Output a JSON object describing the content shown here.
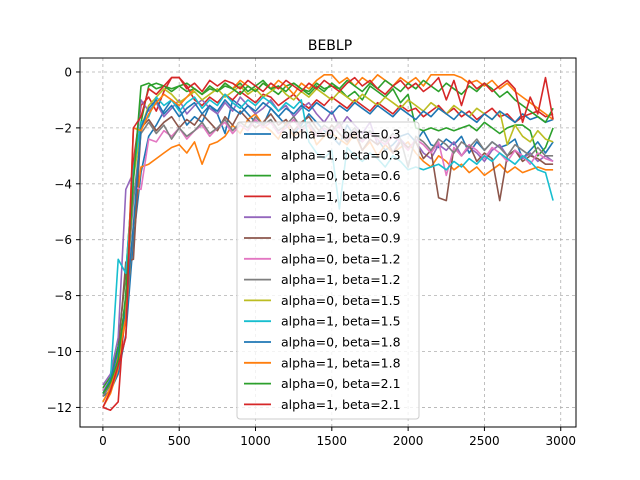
{
  "chart_data": {
    "type": "line",
    "title": "BEBLP",
    "xlabel": "",
    "ylabel": "",
    "xlim": [
      -150,
      3100
    ],
    "ylim": [
      -12.7,
      0.5
    ],
    "xticks": [
      0,
      500,
      1000,
      1500,
      2000,
      2500,
      3000
    ],
    "yticks": [
      0,
      -2,
      -4,
      -6,
      -8,
      -10,
      -12
    ],
    "grid": true,
    "legend_position": "center",
    "x_step": 50,
    "series": [
      {
        "name": "alpha=0, beta=0.3",
        "color": "#1f77b4",
        "values": [
          -11.6,
          -11.4,
          -10.8,
          -9.4,
          -6.0,
          -3.6,
          -2.3,
          -1.9,
          -1.4,
          -1.0,
          -1.3,
          -1.9,
          -1.6,
          -1.8,
          -1.2,
          -1.5,
          -2.2,
          -1.0,
          -1.2,
          -1.5,
          -1.8,
          -1.9,
          -1.3,
          -1.6,
          -1.9,
          -2.2,
          -1.9,
          -1.5,
          -1.8,
          -2.1,
          -2.3,
          -2.6,
          -1.9,
          -2.3,
          -2.5,
          -2.1,
          -2.4,
          -2.8,
          -2.6,
          -2.3,
          -2.2,
          -2.5,
          -2.1,
          -2.6,
          -2.7,
          -2.4,
          -2.6,
          -2.3,
          -2.9,
          -2.5,
          -2.8,
          -2.5,
          -2.7,
          -2.6,
          -2.4,
          -3.1,
          -2.8,
          -2.5,
          -2.9,
          -2.5
        ]
      },
      {
        "name": "alpha=1, beta=0.3",
        "color": "#ff7f0e",
        "values": [
          -12.0,
          -11.5,
          -10.6,
          -8.8,
          -5.5,
          -3.4,
          -3.3,
          -3.1,
          -2.9,
          -2.7,
          -2.6,
          -2.9,
          -2.5,
          -3.3,
          -2.6,
          -2.5,
          -2.3,
          -1.9,
          -2.2,
          -1.7,
          -1.5,
          -1.9,
          -2.1,
          -2.4,
          -1.8,
          -2.3,
          -2.1,
          -1.9,
          -2.6,
          -2.3,
          -2.2,
          -2.4,
          -2.6,
          -2.2,
          -2.8,
          -2.5,
          -3.0,
          -2.6,
          -2.9,
          -2.7,
          -2.5,
          -2.9,
          -3.2,
          -3.4,
          -3.0,
          -3.2,
          -3.5,
          -3.3,
          -3.6,
          -3.4,
          -3.7,
          -3.5,
          -3.3,
          -3.6,
          -3.4,
          -3.6,
          -3.5,
          -3.4,
          -3.5,
          -3.5
        ]
      },
      {
        "name": "alpha=0, beta=0.6",
        "color": "#2ca02c",
        "values": [
          -11.3,
          -10.9,
          -9.8,
          -7.2,
          -3.5,
          -1.8,
          -0.5,
          -0.4,
          -0.5,
          -0.6,
          -0.5,
          -0.7,
          -0.6,
          -0.8,
          -0.6,
          -0.7,
          -0.5,
          -0.6,
          -0.4,
          -0.7,
          -0.5,
          -0.3,
          -0.6,
          -0.8,
          -0.5,
          -0.4,
          -0.6,
          -0.7,
          -0.4,
          -0.6,
          -0.5,
          -0.6,
          -0.9,
          -0.7,
          -1.0,
          -0.5,
          -0.7,
          -0.9,
          -0.6,
          -1.1,
          -0.8,
          -2.0,
          -2.1,
          -2.0,
          -2.1,
          -2.0,
          -2.1,
          -2.0,
          -1.9,
          -2.1,
          -1.8,
          -2.0,
          -2.2,
          -2.0,
          -1.9,
          -1.9,
          -2.1,
          -3.0,
          -2.7,
          -2.0
        ]
      },
      {
        "name": "alpha=1, beta=0.6",
        "color": "#d62728",
        "values": [
          -12.0,
          -12.1,
          -11.8,
          -8.0,
          -3.2,
          -1.2,
          -0.9,
          -1.4,
          -0.7,
          -0.2,
          -0.2,
          -0.5,
          -1.0,
          -1.2,
          -0.9,
          -1.1,
          -0.8,
          -1.0,
          -0.7,
          -0.9,
          -1.1,
          -0.8,
          -0.9,
          -1.2,
          -1.0,
          -0.8,
          -1.1,
          -1.3,
          -1.0,
          -1.2,
          -0.9,
          -1.1,
          -1.3,
          -1.0,
          -1.2,
          -1.4,
          -1.1,
          -1.3,
          -1.5,
          -1.2,
          -1.4,
          -1.3,
          -1.6,
          -1.4,
          -1.2,
          -1.5,
          -1.3,
          -1.6,
          -1.4,
          -1.7,
          -1.5,
          -1.3,
          -1.6,
          -1.5,
          -1.8,
          -1.6,
          -1.5,
          -1.4,
          -1.6,
          -1.5
        ]
      },
      {
        "name": "alpha=0, beta=0.9",
        "color": "#9467bd",
        "values": [
          -11.2,
          -10.8,
          -9.5,
          -4.2,
          -3.6,
          -1.0,
          -1.4,
          -1.1,
          -1.6,
          -1.3,
          -1.0,
          -1.5,
          -1.2,
          -1.0,
          -1.3,
          -1.5,
          -1.1,
          -1.4,
          -0.9,
          -1.2,
          -1.5,
          -1.3,
          -1.0,
          -1.4,
          -1.2,
          -1.6,
          -1.3,
          -1.1,
          -1.5,
          -1.8,
          -1.4,
          -2.0,
          -1.6,
          -1.9,
          -2.2,
          -1.8,
          -2.6,
          -2.3,
          -2.9,
          -2.4,
          -2.7,
          -2.5,
          -2.9,
          -3.1,
          -2.6,
          -2.8,
          -2.5,
          -3.0,
          -2.7,
          -2.9,
          -3.2,
          -2.8,
          -2.6,
          -3.0,
          -2.8,
          -3.1,
          -2.9,
          -3.2,
          -3.0,
          -3.2
        ]
      },
      {
        "name": "alpha=1, beta=0.9",
        "color": "#8c564b",
        "values": [
          -11.5,
          -11.2,
          -10.1,
          -6.8,
          -6.7,
          -2.0,
          -1.7,
          -2.1,
          -1.8,
          -1.6,
          -2.0,
          -1.7,
          -1.9,
          -1.5,
          -1.8,
          -2.1,
          -1.6,
          -1.9,
          -1.4,
          -1.7,
          -2.0,
          -1.8,
          -1.5,
          -1.9,
          -1.7,
          -2.1,
          -1.8,
          -1.6,
          -2.0,
          -2.3,
          -1.9,
          -2.2,
          -2.5,
          -2.1,
          -2.8,
          -2.4,
          -2.6,
          -2.3,
          -2.9,
          -2.5,
          -2.7,
          -2.5,
          -3.1,
          -2.8,
          -4.5,
          -4.6,
          -2.7,
          -3.0,
          -2.6,
          -3.2,
          -2.9,
          -3.1,
          -4.6,
          -3.0,
          -2.8,
          -3.2,
          -3.0,
          -3.1,
          -3.3,
          -3.3
        ]
      },
      {
        "name": "alpha=0, beta=1.2",
        "color": "#e377c2",
        "values": [
          -11.4,
          -11.0,
          -10.2,
          -8.6,
          -4.1,
          -4.2,
          -2.4,
          -2.5,
          -2.1,
          -2.3,
          -2.0,
          -2.4,
          -2.1,
          -1.9,
          -2.3,
          -2.0,
          -1.8,
          -2.2,
          -1.9,
          -2.1,
          -1.7,
          -2.0,
          -1.8,
          -2.2,
          -2.0,
          -1.7,
          -2.1,
          -1.9,
          -2.3,
          -2.0,
          -2.2,
          -1.9,
          -2.4,
          -2.1,
          -2.5,
          -2.2,
          -2.4,
          -2.6,
          -2.3,
          -2.5,
          -2.8,
          -2.4,
          -2.6,
          -2.9,
          -2.5,
          -3.7,
          -2.7,
          -3.0,
          -2.6,
          -2.8,
          -3.1,
          -2.7,
          -2.9,
          -3.2,
          -2.8,
          -3.0,
          -3.3,
          -2.9,
          -3.1,
          -3.2
        ]
      },
      {
        "name": "alpha=1, beta=1.2",
        "color": "#7f7f7f",
        "values": [
          -11.6,
          -11.2,
          -10.4,
          -8.0,
          -4.6,
          -2.2,
          -1.8,
          -2.2,
          -1.9,
          -2.4,
          -2.0,
          -2.3,
          -2.1,
          -1.8,
          -2.2,
          -2.0,
          -1.7,
          -2.1,
          -1.8,
          -2.0,
          -1.6,
          -1.9,
          -1.7,
          -2.1,
          -1.9,
          -1.6,
          -2.0,
          -1.8,
          -2.2,
          -1.9,
          -2.1,
          -1.8,
          -2.3,
          -2.0,
          -2.4,
          -2.1,
          -2.3,
          -2.5,
          -2.2,
          -2.4,
          -3.4,
          -2.3,
          -2.5,
          -2.8,
          -2.4,
          -2.6,
          -2.9,
          -2.5,
          -2.7,
          -2.4,
          -2.8,
          -2.5,
          -2.7,
          -3.0,
          -2.6,
          -2.8,
          -3.0,
          -2.7,
          -3.0,
          -3.0
        ]
      },
      {
        "name": "alpha=0, beta=1.5",
        "color": "#bcbd22",
        "values": [
          -11.8,
          -11.3,
          -10.5,
          -8.3,
          -3.8,
          -2.0,
          -1.2,
          -0.9,
          -0.6,
          -0.8,
          -1.1,
          -0.9,
          -0.7,
          -1.0,
          -0.8,
          -0.6,
          -0.9,
          -0.7,
          -0.5,
          -0.8,
          -0.6,
          -0.9,
          -0.7,
          -0.5,
          -0.8,
          -1.0,
          -0.7,
          -0.9,
          -0.6,
          -0.8,
          -1.0,
          -0.7,
          -0.9,
          -1.1,
          -0.8,
          -1.0,
          -1.2,
          -0.9,
          -1.1,
          -1.3,
          -1.0,
          -1.2,
          -1.4,
          -1.1,
          -1.3,
          -1.5,
          -1.2,
          -1.4,
          -1.6,
          -1.3,
          -1.5,
          -1.7,
          -1.4,
          -2.6,
          -1.9,
          -2.3,
          -2.5,
          -2.1,
          -2.4,
          -2.5
        ]
      },
      {
        "name": "alpha=1, beta=1.5",
        "color": "#17becf",
        "values": [
          -11.5,
          -11.0,
          -6.7,
          -7.2,
          -3.5,
          -1.8,
          -1.6,
          -0.9,
          -1.2,
          -1.0,
          -1.4,
          -1.1,
          -0.9,
          -1.3,
          -1.0,
          -1.2,
          -0.8,
          -1.1,
          -1.3,
          -1.0,
          -1.2,
          -0.9,
          -1.1,
          -1.4,
          -1.1,
          -1.3,
          -1.0,
          -2.5,
          -2.9,
          -3.1,
          -2.8,
          -4.9,
          -2.7,
          -3.0,
          -3.2,
          -2.9,
          -3.1,
          -3.4,
          -3.0,
          -3.2,
          -3.5,
          -3.4,
          -3.5,
          -3.4,
          -3.3,
          -3.5,
          -3.2,
          -3.4,
          -3.1,
          -3.3,
          -3.0,
          -3.2,
          -2.9,
          -3.1,
          -3.3,
          -3.0,
          -3.2,
          -3.5,
          -3.6,
          -4.6
        ]
      },
      {
        "name": "alpha=0, beta=1.8",
        "color": "#1f77b4",
        "values": [
          -11.5,
          -11.0,
          -10.0,
          -8.5,
          -5.5,
          -2.0,
          -1.3,
          -1.0,
          -1.5,
          -1.2,
          -1.6,
          -1.3,
          -1.1,
          -1.5,
          -1.2,
          -1.4,
          -1.0,
          -1.3,
          -1.5,
          -1.2,
          -1.4,
          -1.1,
          -1.3,
          -1.6,
          -1.3,
          -1.5,
          -1.2,
          -1.4,
          -1.1,
          -1.3,
          -1.5,
          -1.2,
          -1.4,
          -1.1,
          -1.3,
          -1.5,
          -1.2,
          -1.4,
          -1.6,
          -1.3,
          -1.5,
          -1.7,
          -1.4,
          -1.6,
          -1.3,
          -1.5,
          -1.7,
          -1.4,
          -1.6,
          -1.8,
          -1.5,
          -1.7,
          -1.4,
          -1.6,
          -1.8,
          -1.5,
          -1.7,
          -1.6,
          -1.8,
          -1.7
        ]
      },
      {
        "name": "alpha=1, beta=1.8",
        "color": "#ff7f0e",
        "values": [
          -11.8,
          -11.3,
          -10.2,
          -8.8,
          -2.0,
          -2.1,
          -1.5,
          -1.1,
          -0.8,
          -1.0,
          -1.2,
          -0.9,
          -0.6,
          -0.8,
          -0.5,
          -0.7,
          -0.4,
          -0.6,
          -0.3,
          -0.5,
          -0.7,
          -0.4,
          -0.6,
          -0.3,
          -0.5,
          -0.8,
          -0.4,
          -0.6,
          -0.3,
          -0.1,
          -0.1,
          -0.4,
          -0.2,
          -0.5,
          -0.2,
          -0.4,
          -0.1,
          -0.3,
          -0.5,
          -0.2,
          -0.4,
          -0.2,
          -0.5,
          -0.1,
          -0.1,
          -0.1,
          -0.1,
          -0.2,
          -0.4,
          -0.3,
          -0.5,
          -0.3,
          -0.6,
          -0.4,
          -0.7,
          -0.9,
          -1.1,
          -1.3,
          -1.5,
          -1.7
        ]
      },
      {
        "name": "alpha=0, beta=2.1",
        "color": "#2ca02c",
        "values": [
          -11.5,
          -11.1,
          -10.3,
          -8.0,
          -3.9,
          -0.5,
          -0.4,
          -0.6,
          -0.5,
          -0.7,
          -0.5,
          -0.4,
          -0.6,
          -0.8,
          -0.5,
          -0.7,
          -0.4,
          -0.6,
          -0.8,
          -0.5,
          -0.7,
          -0.4,
          -0.6,
          -0.5,
          -0.7,
          -0.4,
          -0.6,
          -0.8,
          -0.5,
          -0.7,
          -0.4,
          -0.6,
          -0.3,
          -0.5,
          -0.7,
          -0.4,
          -0.6,
          -0.3,
          -0.5,
          -0.7,
          -0.4,
          -0.6,
          -0.3,
          -0.5,
          -0.7,
          -0.4,
          -0.6,
          -0.8,
          -0.5,
          -0.7,
          -0.4,
          -0.6,
          -0.9,
          -0.7,
          -1.0,
          -1.2,
          -1.4,
          -1.6,
          -1.8,
          -1.3
        ]
      },
      {
        "name": "alpha=1, beta=2.1",
        "color": "#d62728",
        "values": [
          -12.0,
          -11.4,
          -10.5,
          -9.5,
          -2.0,
          -1.6,
          -0.6,
          -0.8,
          -0.5,
          -0.2,
          -0.2,
          -0.6,
          -0.4,
          -0.7,
          -0.3,
          -0.5,
          -0.3,
          -0.4,
          -0.6,
          -0.3,
          -0.5,
          -0.7,
          -0.4,
          -0.6,
          -0.3,
          -0.5,
          -0.7,
          -0.4,
          -0.6,
          -0.3,
          -0.5,
          -0.7,
          -0.4,
          -0.2,
          -0.5,
          -0.3,
          -0.6,
          -0.8,
          -0.5,
          -0.3,
          -0.6,
          -0.4,
          -0.7,
          -0.5,
          -0.2,
          -1.0,
          -0.3,
          -1.2,
          -0.3,
          -0.6,
          -0.4,
          -0.7,
          -0.5,
          -0.3,
          -0.6,
          -1.8,
          -0.9,
          -1.5,
          -0.2,
          -1.7
        ]
      }
    ]
  }
}
